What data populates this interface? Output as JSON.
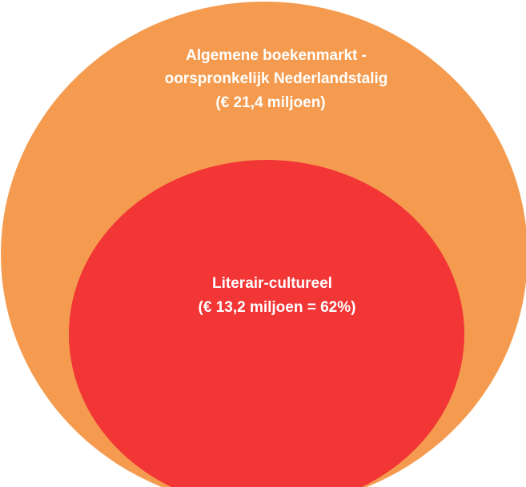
{
  "nodes": [
    {
      "lines": [
        "Algemene boekenmarkt -",
        "oorspronkelijk Nederlandstalig",
        "(€ 21,4 miljoen)"
      ]
    },
    {
      "lines": [
        "Literair-cultureel",
        "(€ 13,2 miljoen = 62%)"
      ]
    }
  ]
}
